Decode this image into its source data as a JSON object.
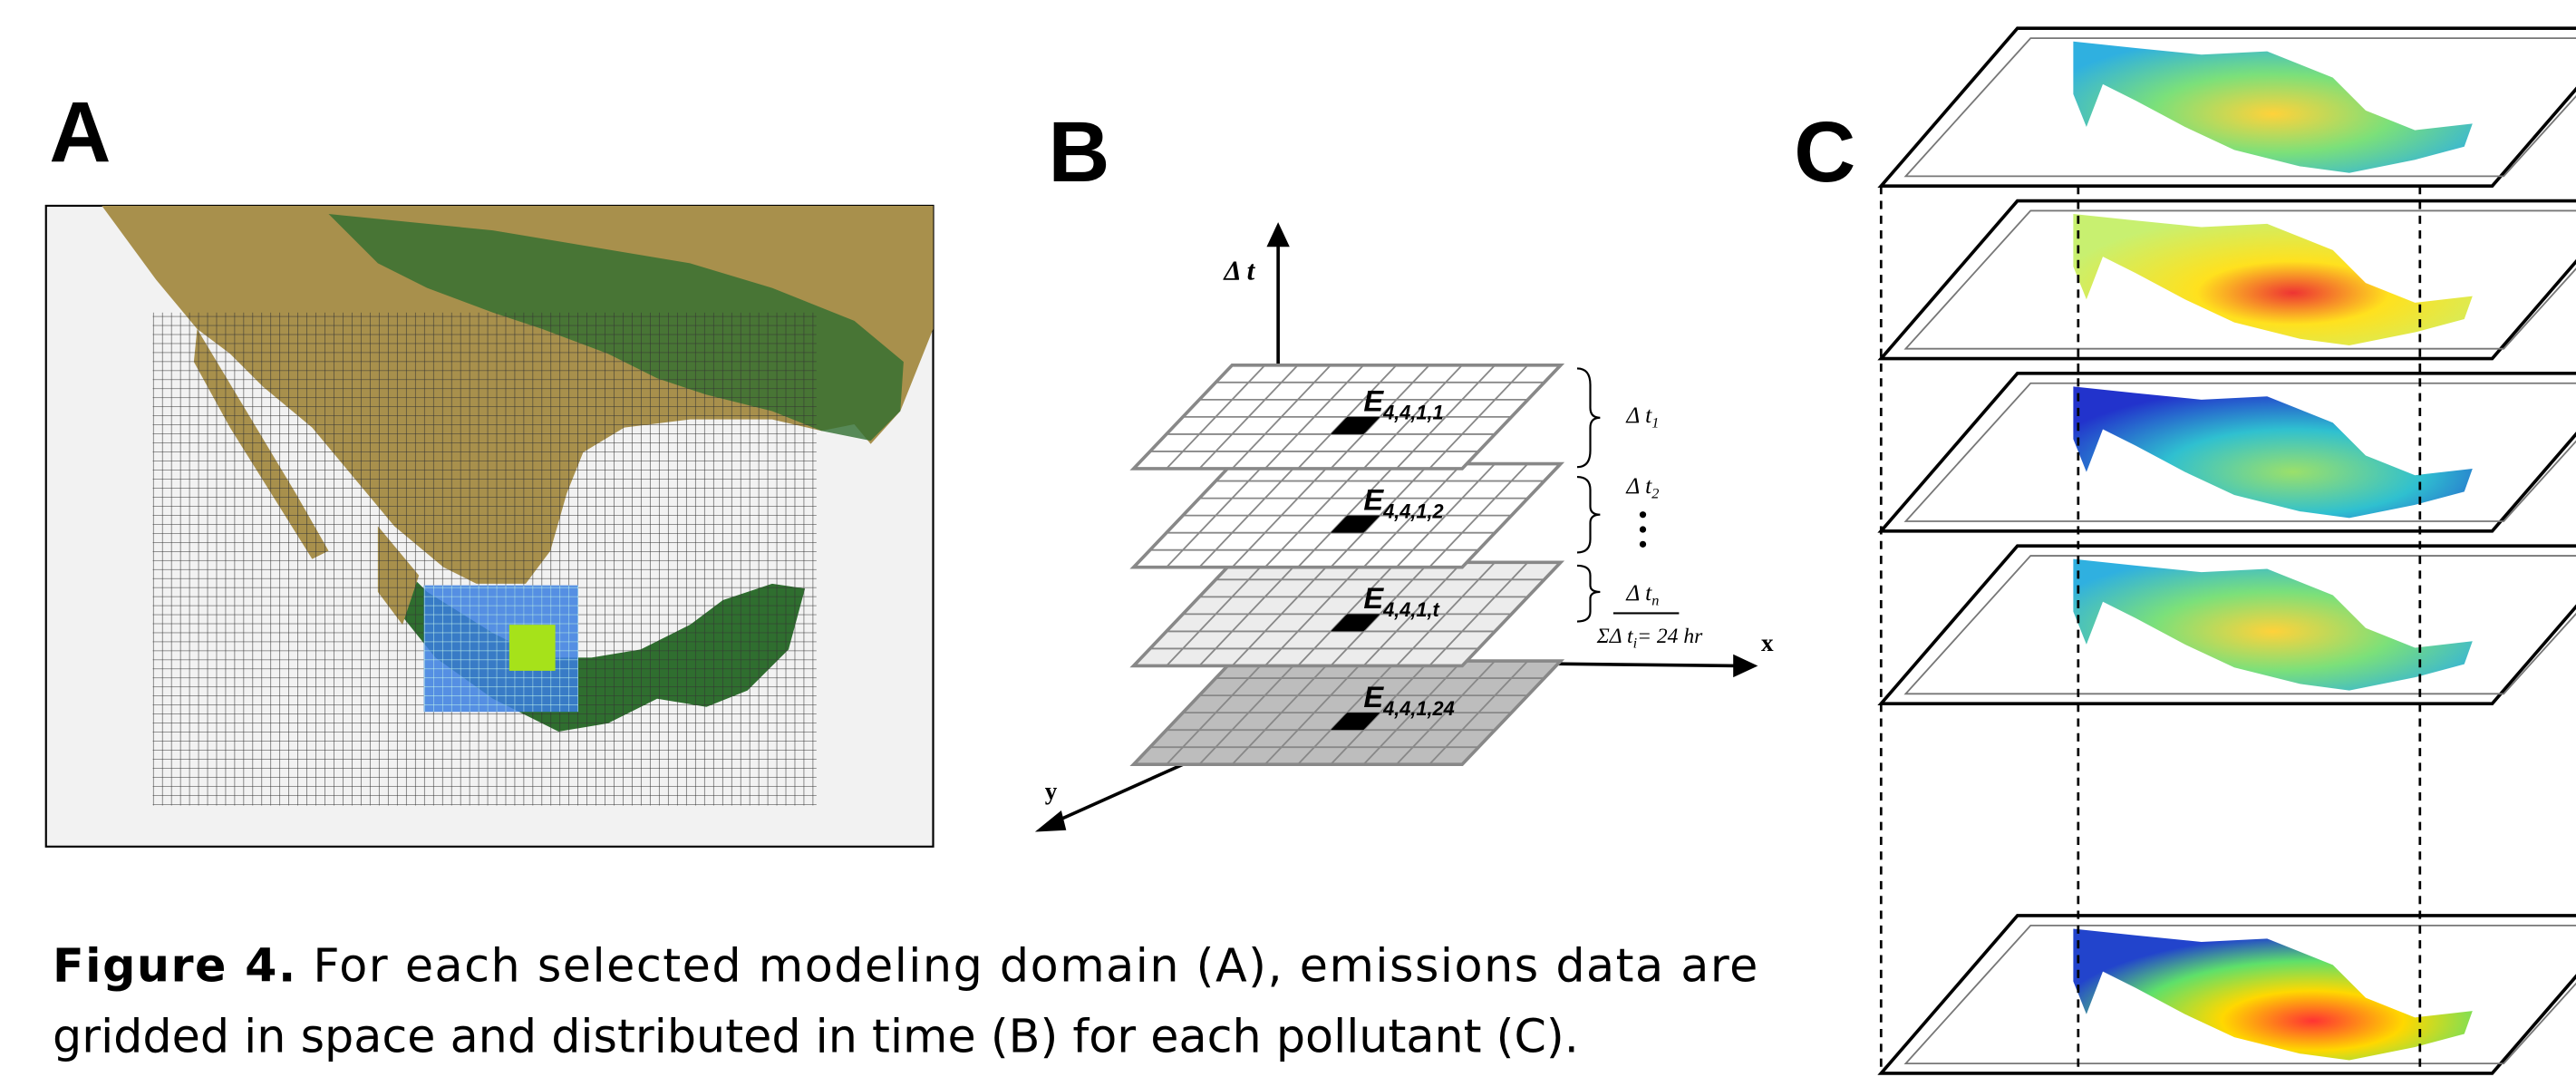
{
  "panels": [
    {
      "label": "A"
    },
    {
      "label": "B",
      "axes": {
        "t": "Δ t",
        "x": "x",
        "y": "y"
      },
      "layers": [
        {
          "cell": "E",
          "subscript": "4,4,1,1"
        },
        {
          "cell": "E",
          "subscript": "4,4,1,2"
        },
        {
          "cell": "E",
          "subscript": "4,4,1,t"
        },
        {
          "cell": "E",
          "subscript": "4,4,1,24"
        }
      ],
      "intervals": [
        {
          "symbol": "Δ t",
          "subscript": "1"
        },
        {
          "symbol": "Δ t",
          "subscript": "2"
        },
        {
          "symbol": "Δ t",
          "subscript": "n"
        }
      ],
      "sum": {
        "prefix": "ΣΔ  t",
        "subscript": "i",
        "suffix": "= 24 hr"
      }
    },
    {
      "label": "C"
    }
  ],
  "caption": {
    "label": "Figure 4.",
    "lines": [
      "For each selected modeling domain (A), emissions data are",
      "gridded in space and distributed in time (B) for each pollutant (C)."
    ]
  }
}
